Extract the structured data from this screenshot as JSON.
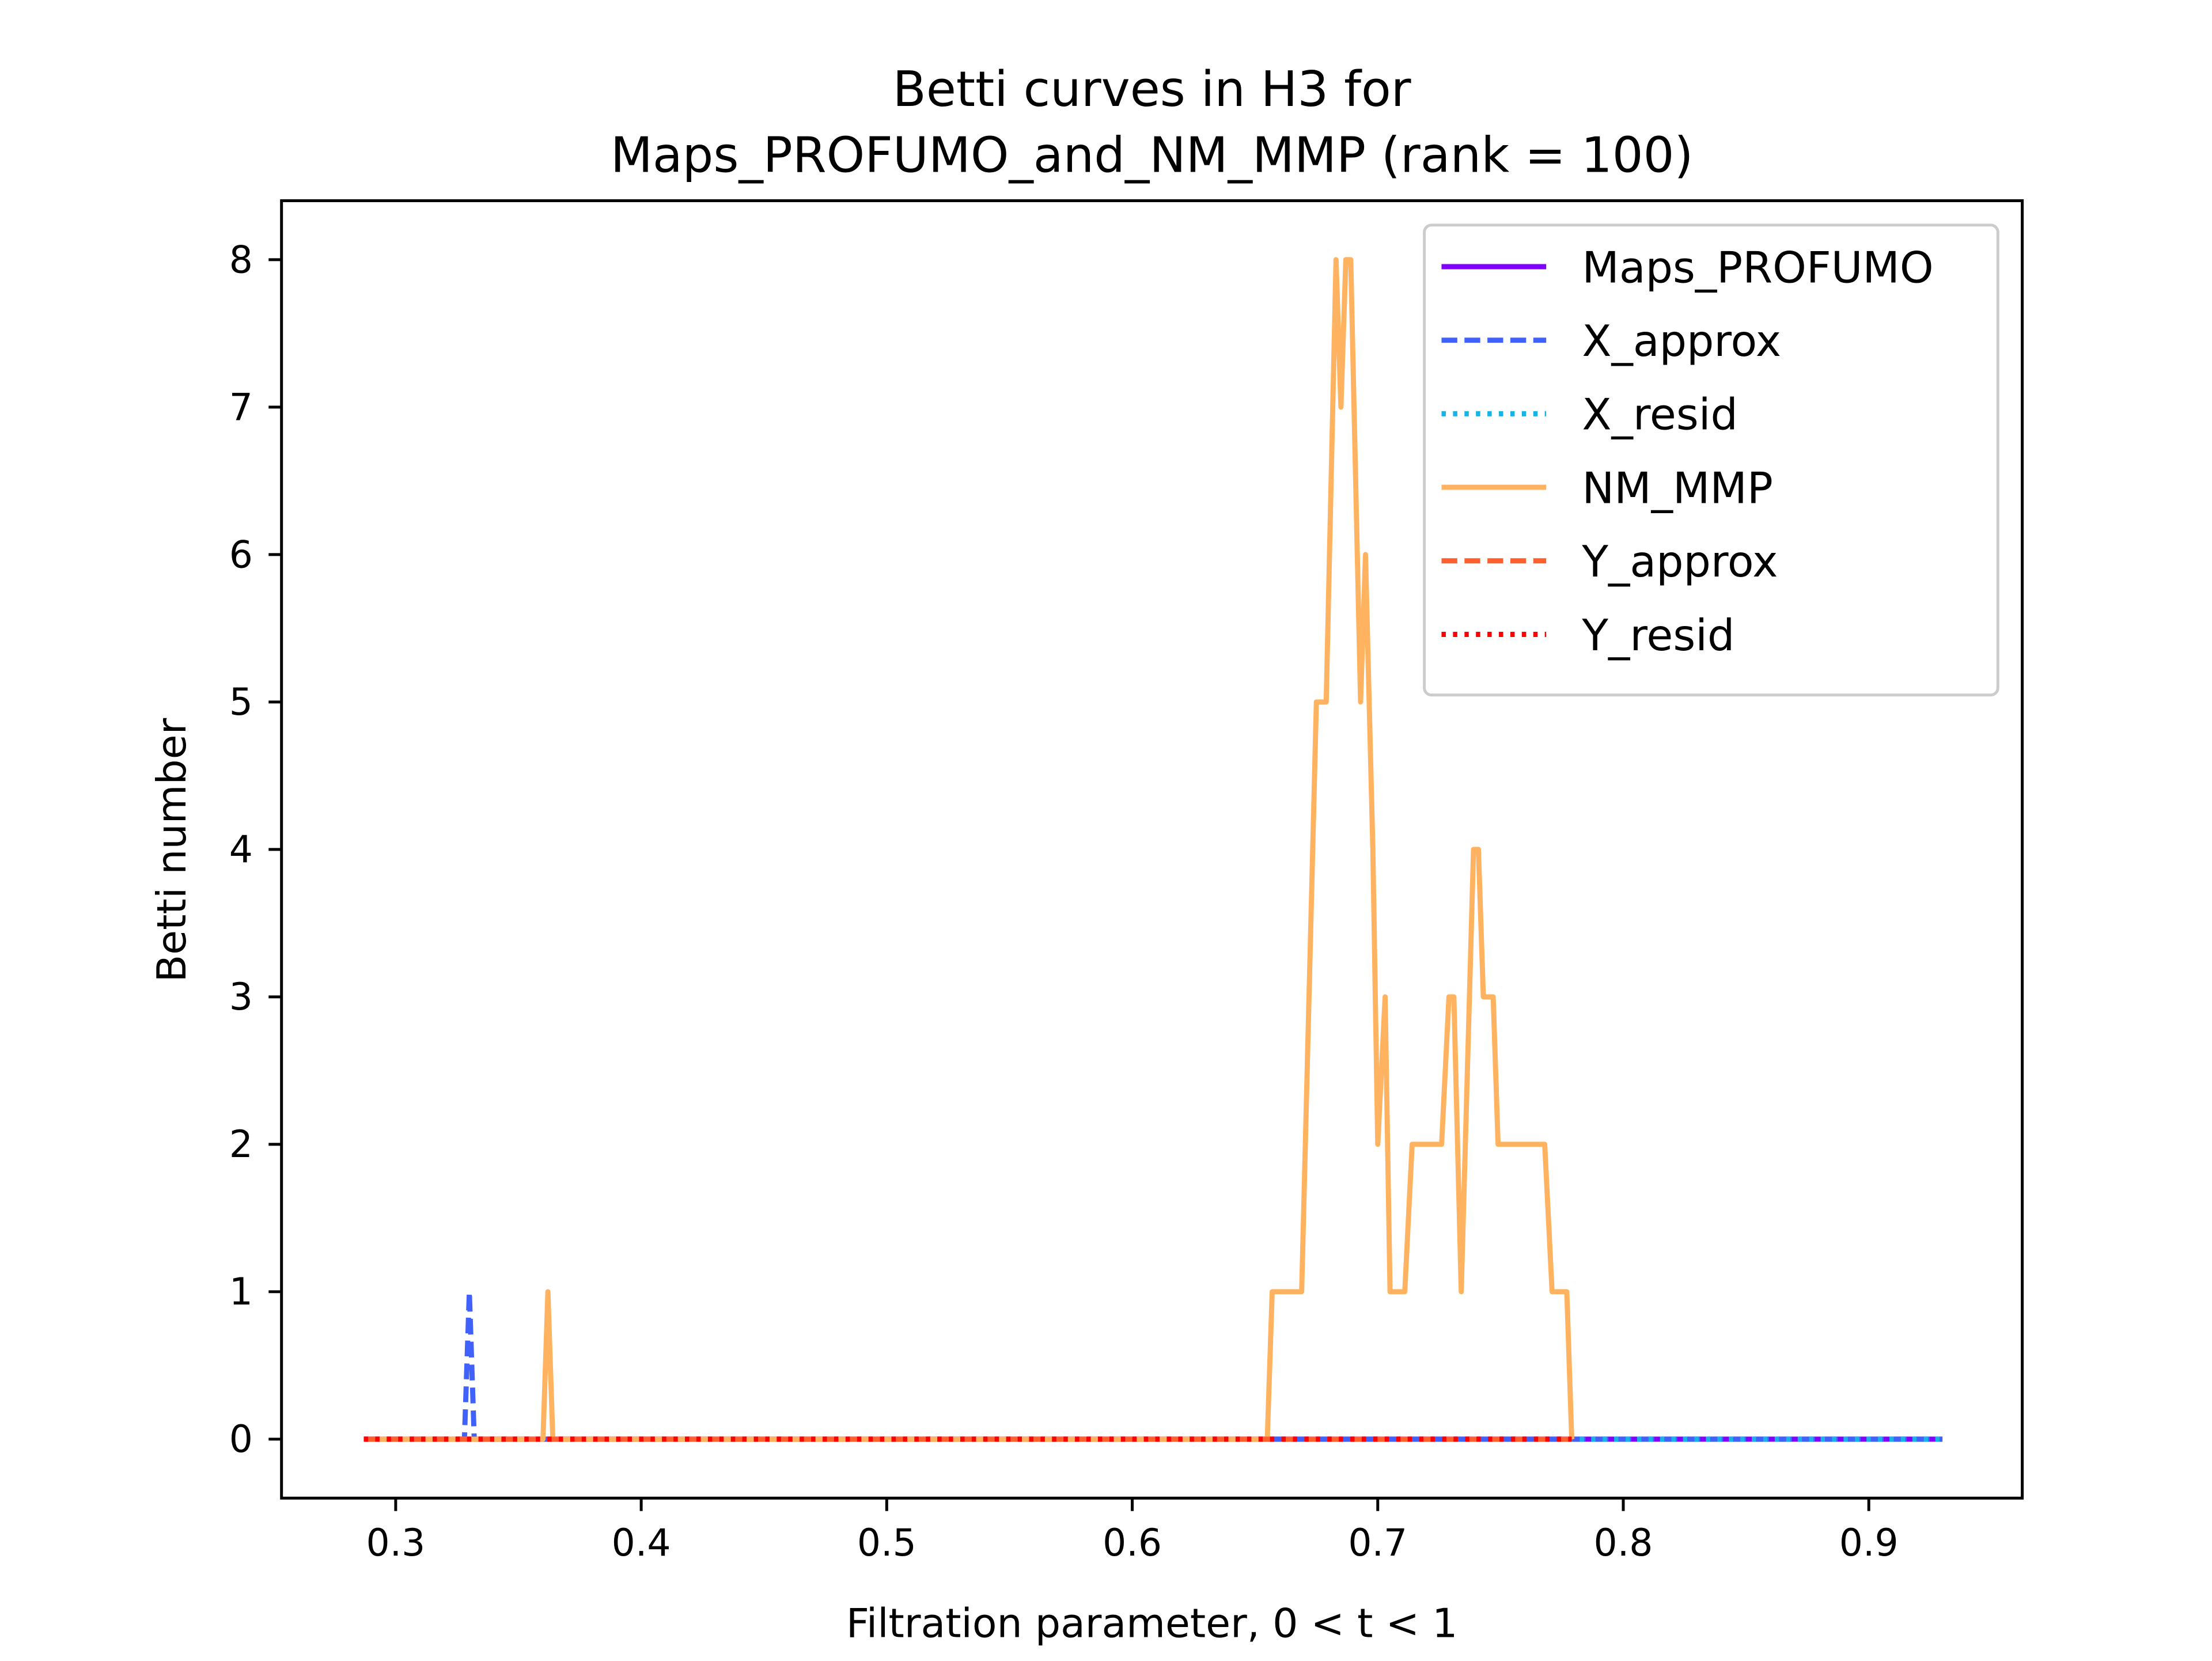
{
  "chart_data": {
    "type": "line",
    "title": [
      "Betti curves in H3 for",
      "Maps_PROFUMO_and_NM_MMP (rank = 100)"
    ],
    "x_label": "Filtration parameter, 0 < t < 1",
    "y_label": "Betti number",
    "xlim": [
      0.2535,
      0.9625
    ],
    "ylim": [
      -0.4,
      8.4
    ],
    "xticks": [
      0.3,
      0.4,
      0.5,
      0.6,
      0.7,
      0.8,
      0.9
    ],
    "yticks": [
      0,
      1,
      2,
      3,
      4,
      5,
      6,
      7,
      8
    ],
    "grid": false,
    "legend": "upper right",
    "series": [
      {
        "name": "Maps_PROFUMO",
        "color": "#7f00ff",
        "linestyle": "solid",
        "x": [
          0.287,
          0.93
        ],
        "values": [
          0,
          0
        ]
      },
      {
        "name": "X_approx",
        "color": "#4062fa",
        "linestyle": "dashed",
        "x": [
          0.287,
          0.328,
          0.33,
          0.332,
          0.93
        ],
        "values": [
          0,
          0,
          1,
          0,
          0
        ]
      },
      {
        "name": "X_resid",
        "color": "#1ab2e6",
        "linestyle": "dotted",
        "x": [
          0.287,
          0.93
        ],
        "values": [
          0,
          0
        ]
      },
      {
        "name": "NM_MMP",
        "color": "#ffb360",
        "linestyle": "solid",
        "x": [
          0.287,
          0.36,
          0.362,
          0.364,
          0.655,
          0.657,
          0.669,
          0.675,
          0.679,
          0.683,
          0.685,
          0.687,
          0.689,
          0.693,
          0.695,
          0.698,
          0.7,
          0.703,
          0.705,
          0.711,
          0.714,
          0.726,
          0.729,
          0.731,
          0.734,
          0.739,
          0.741,
          0.743,
          0.747,
          0.749,
          0.768,
          0.771,
          0.777,
          0.779
        ],
        "values": [
          0,
          0,
          1,
          0,
          0,
          1,
          1,
          5,
          5,
          8,
          7,
          8,
          8,
          5,
          6,
          4,
          2,
          3,
          1,
          1,
          2,
          2,
          3,
          3,
          1,
          4,
          4,
          3,
          3,
          2,
          2,
          1,
          1,
          0
        ]
      },
      {
        "name": "Y_approx",
        "color": "#ff6030",
        "linestyle": "dashed",
        "x": [
          0.287,
          0.779
        ],
        "values": [
          0,
          0
        ]
      },
      {
        "name": "Y_resid",
        "color": "#ff0000",
        "linestyle": "dotted",
        "x": [
          0.287,
          0.779
        ],
        "values": [
          0,
          0
        ]
      }
    ]
  }
}
